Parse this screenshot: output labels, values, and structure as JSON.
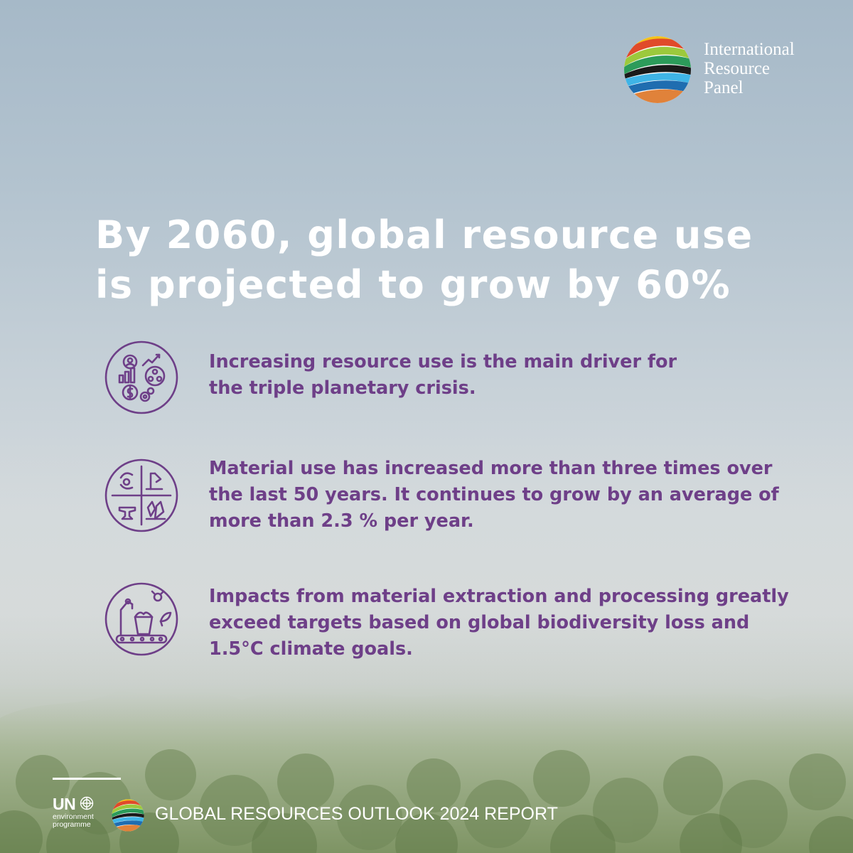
{
  "brand": {
    "panel_name_lines": [
      "International",
      "Resource",
      "Panel"
    ],
    "logo_icon": "irp-globe-logo"
  },
  "headline": {
    "lines": [
      "By 2060, global resource use",
      "is projected to grow by 60%"
    ]
  },
  "points": [
    {
      "icon": "economy-growth-icon",
      "lines": [
        "Increasing resource use is the main driver for",
        "the triple planetary crisis."
      ]
    },
    {
      "icon": "material-types-icon",
      "lines": [
        "Material use has increased more than three times over",
        "the last 50 years. It continues to grow by an average of",
        "more than 2.3 % per year."
      ]
    },
    {
      "icon": "extraction-processing-icon",
      "lines": [
        "Impacts from material extraction and processing greatly",
        "exceed targets based on global biodiversity loss and",
        "1.5°C climate goals."
      ]
    }
  ],
  "footer": {
    "un_abbrev": "UN",
    "un_sub_lines": [
      "environment",
      "programme"
    ],
    "report_title": "GLOBAL RESOURCES OUTLOOK 2024 REPORT"
  },
  "colors": {
    "accent_purple": "#6e3f88",
    "text_white": "#ffffff"
  }
}
